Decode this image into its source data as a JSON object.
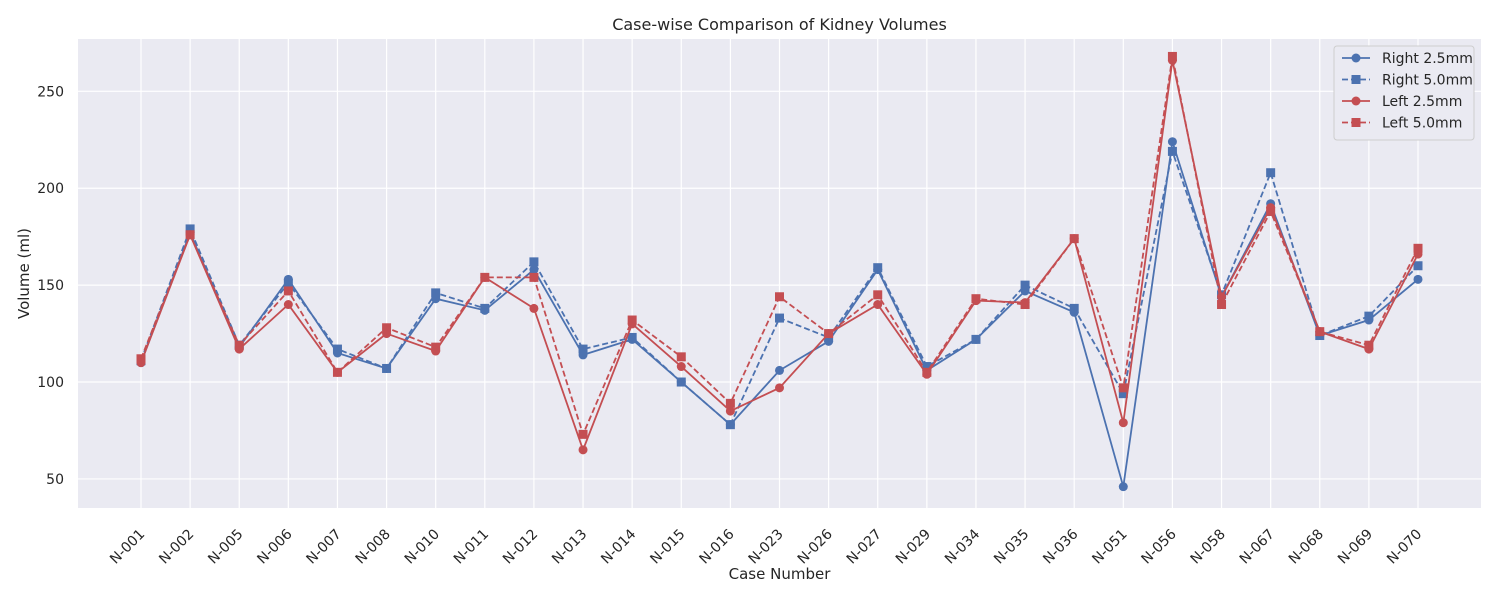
{
  "chart_data": {
    "type": "line",
    "title": "Case-wise Comparison of Kidney Volumes",
    "xlabel": "Case Number",
    "ylabel": "Volume (ml)",
    "ylim": [
      35,
      277
    ],
    "yticks": [
      50,
      100,
      150,
      200,
      250
    ],
    "grid": true,
    "legend_position": "top-right",
    "categories": [
      "N-001",
      "N-002",
      "N-005",
      "N-006",
      "N-007",
      "N-008",
      "N-010",
      "N-011",
      "N-012",
      "N-013",
      "N-014",
      "N-015",
      "N-016",
      "N-023",
      "N-026",
      "N-027",
      "N-029",
      "N-034",
      "N-035",
      "N-036",
      "N-051",
      "N-056",
      "N-058",
      "N-067",
      "N-068",
      "N-069",
      "N-070"
    ],
    "series": [
      {
        "name": "Right 2.5mm",
        "color": "#4c72b0",
        "line_style": "solid",
        "marker": "circle",
        "values": [
          110,
          177,
          118,
          153,
          115,
          107,
          143,
          137,
          158,
          114,
          122,
          100,
          78,
          106,
          121,
          158,
          106,
          122,
          147,
          136,
          46,
          224,
          144,
          192,
          124,
          132,
          153
        ]
      },
      {
        "name": "Right 5.0mm",
        "color": "#4c72b0",
        "line_style": "dashed",
        "marker": "square",
        "values": [
          111,
          179,
          119,
          151,
          117,
          107,
          146,
          138,
          162,
          117,
          123,
          100,
          78,
          133,
          123,
          159,
          108,
          122,
          150,
          138,
          94,
          219,
          145,
          208,
          124,
          134,
          160
        ]
      },
      {
        "name": "Left 2.5mm",
        "color": "#c44e52",
        "line_style": "solid",
        "marker": "circle",
        "values": [
          110,
          176,
          117,
          140,
          105,
          125,
          116,
          154,
          138,
          65,
          130,
          108,
          85,
          97,
          125,
          140,
          104,
          142,
          141,
          174,
          79,
          266,
          144,
          190,
          126,
          117,
          166
        ]
      },
      {
        "name": "Left 5.0mm",
        "color": "#c44e52",
        "line_style": "dashed",
        "marker": "square",
        "values": [
          112,
          176,
          119,
          147,
          105,
          128,
          118,
          154,
          154,
          73,
          132,
          113,
          89,
          144,
          125,
          145,
          105,
          143,
          140,
          174,
          97,
          268,
          140,
          188,
          126,
          119,
          169
        ]
      }
    ]
  }
}
